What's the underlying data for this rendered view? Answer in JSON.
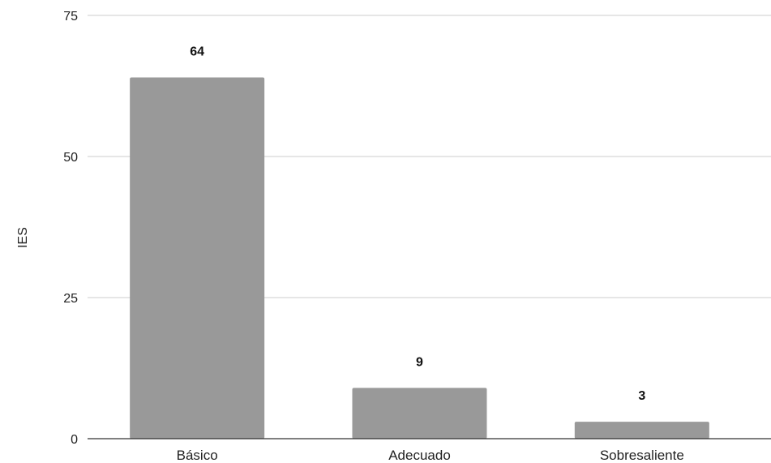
{
  "chart_data": {
    "type": "bar",
    "title": "",
    "xlabel": "",
    "ylabel": "IES",
    "categories": [
      "Básico",
      "Adecuado",
      "Sobresaliente"
    ],
    "values": [
      64,
      9,
      3
    ],
    "data_labels": [
      "64",
      "9",
      "3"
    ],
    "ylim": [
      0,
      75
    ],
    "yticks": [
      0,
      25,
      50,
      75
    ],
    "ytick_labels": [
      "0",
      "25",
      "50",
      "75"
    ],
    "grid": true,
    "legend": "none",
    "bar_color": "#999999",
    "grid_color": "#cccccc",
    "axis_color": "#333333"
  }
}
